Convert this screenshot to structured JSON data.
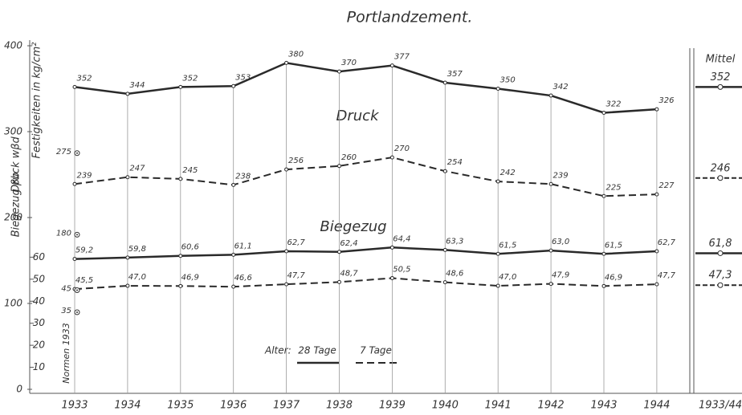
{
  "chart_data": {
    "type": "line",
    "title": "Portlandzement.",
    "y_label": "Festigkeiten in kg/cm²",
    "y_label_druck": "Druck wβd",
    "y_label_biegezug": "Biegezug βb",
    "annotations": [
      "Druck",
      "Biegezug"
    ],
    "categories": [
      "1933",
      "1934",
      "1935",
      "1936",
      "1937",
      "1938",
      "1939",
      "1940",
      "1941",
      "1942",
      "1943",
      "1944"
    ],
    "ylim": [
      0,
      400
    ],
    "yticks": [
      0,
      100,
      200,
      300,
      400
    ],
    "y2lim": [
      0,
      156
    ],
    "y2ticks": [
      10,
      20,
      30,
      40,
      50,
      60
    ],
    "legend_title": "Alter:",
    "color": "#2a2a2a",
    "series": [
      {
        "name": "28 Tage",
        "axis": "y",
        "dash": false,
        "values": [
          352,
          344,
          352,
          353,
          380,
          370,
          377,
          357,
          350,
          342,
          322,
          326
        ],
        "mean": 352
      },
      {
        "name": "7 Tage",
        "axis": "y",
        "dash": true,
        "values": [
          239,
          247,
          245,
          238,
          256,
          260,
          270,
          254,
          242,
          239,
          225,
          227
        ],
        "mean": 246
      },
      {
        "name": "28 Tage",
        "axis": "y2",
        "dash": false,
        "values": [
          59.2,
          59.8,
          60.6,
          61.1,
          62.7,
          62.4,
          64.4,
          63.3,
          61.5,
          63.0,
          61.5,
          62.7
        ],
        "value_labels": [
          "59,2",
          "59,8",
          "60,6",
          "61,1",
          "62,7",
          "62,4",
          "64,4",
          "63,3",
          "61,5",
          "63,0",
          "61,5",
          "62,7"
        ],
        "mean": 61.8,
        "mean_label": "61,8"
      },
      {
        "name": "7 Tage",
        "axis": "y2",
        "dash": true,
        "values": [
          45.5,
          47.0,
          46.9,
          46.6,
          47.7,
          48.7,
          50.5,
          48.6,
          47.0,
          47.9,
          46.9,
          47.7
        ],
        "value_labels": [
          "45,5",
          "47,0",
          "46,9",
          "46,6",
          "47,7",
          "48,7",
          "50,5",
          "48,6",
          "47,0",
          "47,9",
          "46,9",
          "47,7"
        ],
        "mean": 47.3,
        "mean_label": "47,3"
      }
    ],
    "mean_title": "Mittel",
    "mean_category": "1933/44",
    "norms": {
      "label": "Normen 1933",
      "points": [
        {
          "value": 275,
          "axis": "y"
        },
        {
          "value": 180,
          "axis": "y"
        },
        {
          "value": 45,
          "axis": "y2"
        },
        {
          "value": 35,
          "axis": "y2"
        }
      ]
    }
  }
}
